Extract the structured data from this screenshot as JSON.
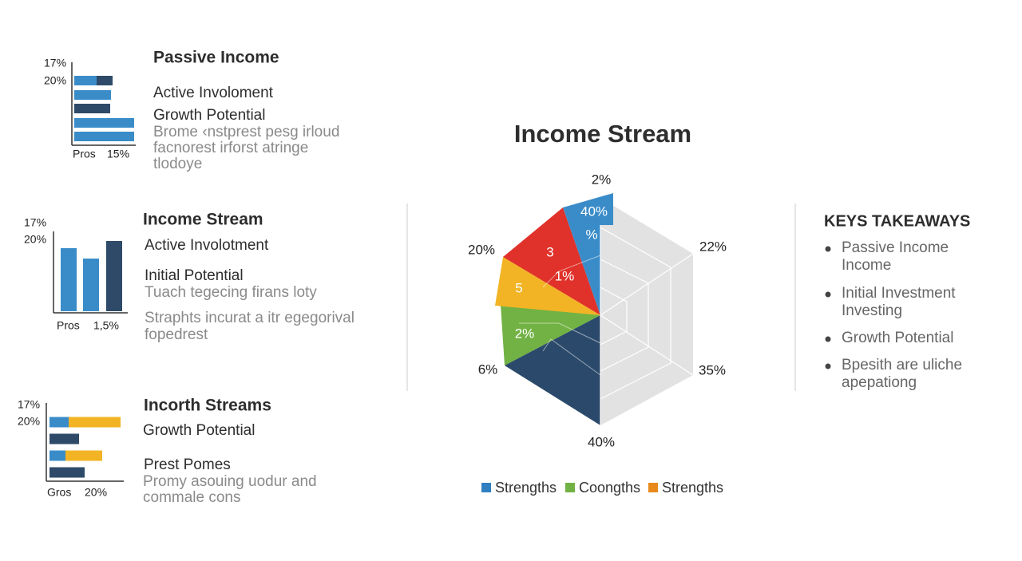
{
  "panels": [
    {
      "title": "Passive Income",
      "axis_labels": [
        "17%",
        "20%"
      ],
      "footer_labels": [
        "Pros",
        "15%"
      ],
      "lines": [
        "Active Involoment",
        "Growth Potential"
      ],
      "description": [
        "Brome ‹nstprest pesg irloud",
        "facnorest irforst atringe",
        "tlodoye"
      ],
      "orientation": "horizontal",
      "bars": [
        {
          "values": [
            28,
            20
          ],
          "colors": [
            "#3a8cc9",
            "#2e4a68"
          ]
        },
        {
          "values": [
            46
          ],
          "colors": [
            "#3a8cc9"
          ]
        },
        {
          "values": [
            45
          ],
          "colors": [
            "#2e4a68"
          ]
        },
        {
          "values": [
            75
          ],
          "colors": [
            "#3a8cc9"
          ]
        },
        {
          "values": [
            75
          ],
          "colors": [
            "#3a8cc9"
          ]
        }
      ]
    },
    {
      "title": "Income Stream",
      "axis_labels": [
        "17%",
        "20%"
      ],
      "footer_labels": [
        "Pros",
        "1,5%"
      ],
      "lines": [
        "Active Involotment",
        "Initial Potential"
      ],
      "description": [
        "Tuach tegecing firans loty",
        "Straphts incurat a itr egegorival",
        "fopedrest"
      ],
      "orientation": "vertical",
      "bars": [
        {
          "values": [
            79
          ],
          "colors": [
            "#3a8cc9"
          ]
        },
        {
          "values": [
            66
          ],
          "colors": [
            "#3a8cc9"
          ]
        },
        {
          "values": [
            88
          ],
          "colors": [
            "#2e4a68"
          ]
        }
      ]
    },
    {
      "title": "Incorth Streams",
      "axis_labels": [
        "17%",
        "20%"
      ],
      "footer_labels": [
        "Gros",
        "20%"
      ],
      "lines": [
        "Growth Potential",
        "Prest Pomes"
      ],
      "description": [
        "Promy asouing uodur and",
        "commale cons"
      ],
      "orientation": "horizontal",
      "bars": [
        {
          "values": [
            24,
            65
          ],
          "colors": [
            "#3a8cc9",
            "#f2b425"
          ]
        },
        {
          "values": [
            37
          ],
          "colors": [
            "#2e4a68"
          ]
        },
        {
          "values": [
            20,
            46
          ],
          "colors": [
            "#3a8cc9",
            "#f2b425"
          ]
        },
        {
          "values": [
            44
          ],
          "colors": [
            "#2e4a68"
          ]
        }
      ]
    }
  ],
  "radar": {
    "title": "Income Stream",
    "outer_labels": [
      "2%",
      "22%",
      "35%",
      "40%",
      "6%",
      "20%"
    ],
    "inner_labels": [
      "40%",
      "%",
      "3",
      "1%",
      "5",
      "2%"
    ],
    "legend": [
      {
        "name": "Strengths",
        "color": "#2f7fc1"
      },
      {
        "name": "Coongths",
        "color": "#72b244"
      },
      {
        "name": "Strengths",
        "color": "#e8891c"
      }
    ]
  },
  "takeaways": {
    "title": "KEYS TAKEAWAYS",
    "items": [
      [
        "Passive Income",
        "Income"
      ],
      [
        "Initial Investment",
        "Investing"
      ],
      [
        "Growth Potential"
      ],
      [
        "Bpesith are uliche",
        "apepationg"
      ]
    ]
  }
}
